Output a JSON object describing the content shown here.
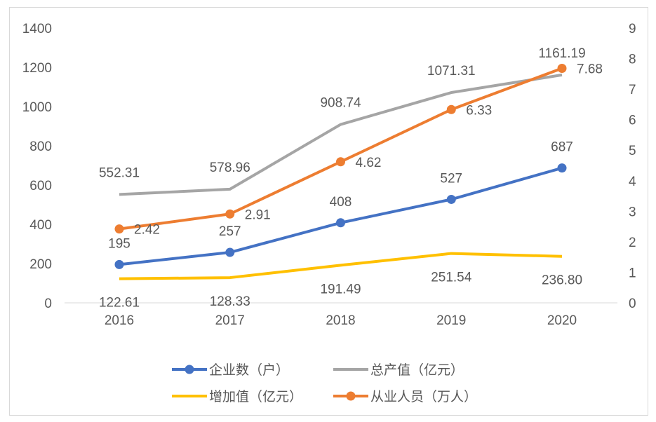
{
  "chart_data": {
    "type": "line",
    "categories": [
      "2016",
      "2017",
      "2018",
      "2019",
      "2020"
    ],
    "y_left": {
      "range": [
        0,
        1400
      ],
      "ticks": [
        "0",
        "200",
        "400",
        "600",
        "800",
        "1000",
        "1200",
        "1400"
      ]
    },
    "y_right": {
      "range": [
        0,
        9
      ],
      "ticks": [
        "0",
        "1",
        "2",
        "3",
        "4",
        "5",
        "6",
        "7",
        "8",
        "9"
      ]
    },
    "grid": false,
    "legend_position": "bottom",
    "series": [
      {
        "name": "企业数（户）",
        "axis": "left",
        "color": "#4472C4",
        "markers": true,
        "values": [
          195,
          257,
          408,
          527,
          687
        ],
        "labels": [
          "195",
          "257",
          "408",
          "527",
          "687"
        ],
        "label_pos": "above"
      },
      {
        "name": "总产值（亿元）",
        "axis": "left",
        "color": "#A5A5A5",
        "markers": false,
        "values": [
          552.31,
          578.96,
          908.74,
          1071.31,
          1161.19
        ],
        "labels": [
          "552.31",
          "578.96",
          "908.74",
          "1071.31",
          "1161.19"
        ],
        "label_pos": "above"
      },
      {
        "name": "增加值（亿元）",
        "axis": "left",
        "color": "#FFC000",
        "markers": false,
        "values": [
          122.61,
          128.33,
          191.49,
          251.54,
          236.8
        ],
        "labels": [
          "122.61",
          "128.33",
          "191.49",
          "251.54",
          "236.80"
        ],
        "label_pos": "below"
      },
      {
        "name": "从业人员（万人）",
        "axis": "right",
        "color": "#ED7D31",
        "markers": true,
        "values": [
          2.42,
          2.91,
          4.62,
          6.33,
          7.68
        ],
        "labels": [
          "2.42",
          "2.91",
          "4.62",
          "6.33",
          "7.68"
        ],
        "label_pos": "right"
      }
    ]
  }
}
